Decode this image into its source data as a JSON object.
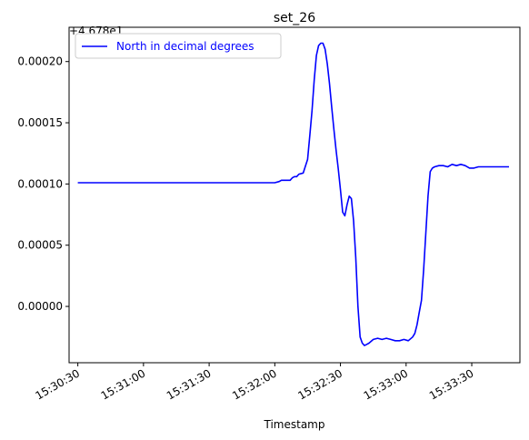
{
  "chart_data": {
    "type": "line",
    "title": "set_26",
    "xlabel": "Timestamp",
    "ylabel": "",
    "offset_label": "+4.678e1",
    "x_ticks": [
      "15:30:30",
      "15:31:00",
      "15:31:30",
      "15:32:00",
      "15:32:30",
      "15:33:00",
      "15:33:30"
    ],
    "y_ticks": [
      "0.00000",
      "0.00005",
      "0.00010",
      "0.00015",
      "0.00020"
    ],
    "xlim": [
      "15:30:26",
      "15:33:52"
    ],
    "ylim": [
      -4.6e-05,
      0.000228
    ],
    "grid": false,
    "legend_position": "top-left",
    "series": [
      {
        "name": "North in decimal degrees",
        "color": "#0000ff",
        "x": [
          "15:30:30",
          "15:31:59",
          "15:32:00",
          "15:32:02",
          "15:32:03",
          "15:32:05",
          "15:32:06",
          "15:32:07",
          "15:32:08",
          "15:32:09",
          "15:32:10",
          "15:32:11",
          "15:32:13",
          "15:32:15",
          "15:32:16",
          "15:32:17",
          "15:32:18",
          "15:32:19",
          "15:32:20",
          "15:32:21",
          "15:32:22",
          "15:32:23",
          "15:32:24",
          "15:32:25",
          "15:32:26",
          "15:32:27",
          "15:32:28",
          "15:32:29",
          "15:32:30",
          "15:32:31",
          "15:32:32",
          "15:32:33",
          "15:32:34",
          "15:32:35",
          "15:32:36",
          "15:32:37",
          "15:32:38",
          "15:32:39",
          "15:32:40",
          "15:32:41",
          "15:32:42",
          "15:32:43",
          "15:32:45",
          "15:32:47",
          "15:32:49",
          "15:32:51",
          "15:32:53",
          "15:32:55",
          "15:32:57",
          "15:32:59",
          "15:33:01",
          "15:33:03",
          "15:33:04",
          "15:33:05",
          "15:33:06",
          "15:33:07",
          "15:33:08",
          "15:33:09",
          "15:33:10",
          "15:33:11",
          "15:33:12",
          "15:33:13",
          "15:33:15",
          "15:33:17",
          "15:33:19",
          "15:33:21",
          "15:33:23",
          "15:33:25",
          "15:33:27",
          "15:33:29",
          "15:33:31",
          "15:33:33",
          "15:33:37",
          "15:33:41",
          "15:33:47"
        ],
        "values": [
          0.000101,
          0.000101,
          0.000101,
          0.000102,
          0.000103,
          0.000103,
          0.000103,
          0.000103,
          0.000105,
          0.000106,
          0.000106,
          0.000108,
          0.000109,
          0.00012,
          0.00014,
          0.00016,
          0.000185,
          0.000205,
          0.000213,
          0.000215,
          0.000215,
          0.00021,
          0.000198,
          0.000182,
          0.000163,
          0.000145,
          0.000128,
          0.000112,
          9.5e-05,
          7.7e-05,
          7.4e-05,
          8.3e-05,
          9e-05,
          8.8e-05,
          7e-05,
          4e-05,
          0.0,
          -2.5e-05,
          -3e-05,
          -3.2e-05,
          -3.1e-05,
          -3e-05,
          -2.7e-05,
          -2.6e-05,
          -2.7e-05,
          -2.6e-05,
          -2.7e-05,
          -2.8e-05,
          -2.8e-05,
          -2.7e-05,
          -2.8e-05,
          -2.5e-05,
          -2.2e-05,
          -1.5e-05,
          -5e-06,
          5e-06,
          3e-05,
          6e-05,
          9e-05,
          0.00011,
          0.000113,
          0.000114,
          0.000115,
          0.000115,
          0.000114,
          0.000116,
          0.000115,
          0.000116,
          0.000115,
          0.000113,
          0.000113,
          0.000114,
          0.000114,
          0.000114,
          0.000114
        ]
      }
    ]
  }
}
